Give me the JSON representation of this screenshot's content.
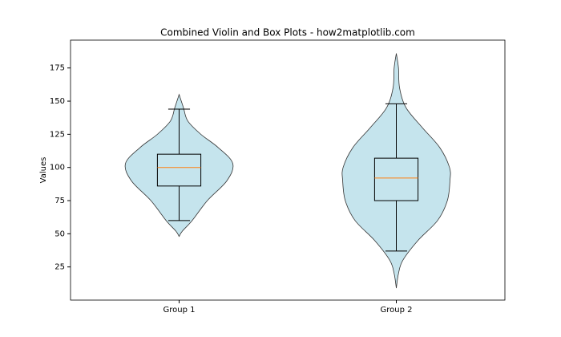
{
  "chart_data": {
    "type": "violin",
    "title": "Combined Violin and Box Plots - how2matplotlib.com",
    "ylabel": "Values",
    "categories": [
      "Group 1",
      "Group 2"
    ],
    "ylim": [
      0,
      196
    ],
    "yticks": [
      25,
      50,
      75,
      100,
      125,
      150,
      175
    ],
    "violin_color": "#add8e6",
    "edge_color": "#333333",
    "median_color": "#ff7f0e",
    "groups": [
      {
        "q1": 86,
        "median": 100,
        "q3": 110,
        "whisker_low": 60,
        "whisker_high": 144,
        "density_values": [
          48,
          52,
          60,
          75,
          90,
          103,
          115,
          125,
          135,
          145,
          155
        ],
        "density_widths": [
          0,
          0.015,
          0.06,
          0.13,
          0.22,
          0.247,
          0.18,
          0.1,
          0.04,
          0.02,
          0
        ]
      },
      {
        "q1": 75,
        "median": 92,
        "q3": 107,
        "whisker_low": 37,
        "whisker_high": 148,
        "density_values": [
          9,
          20,
          30,
          45,
          60,
          75,
          90,
          100,
          115,
          130,
          145,
          160,
          175,
          186
        ],
        "density_widths": [
          0,
          0.01,
          0.03,
          0.1,
          0.19,
          0.235,
          0.247,
          0.245,
          0.2,
          0.12,
          0.045,
          0.015,
          0.01,
          0
        ]
      }
    ]
  }
}
